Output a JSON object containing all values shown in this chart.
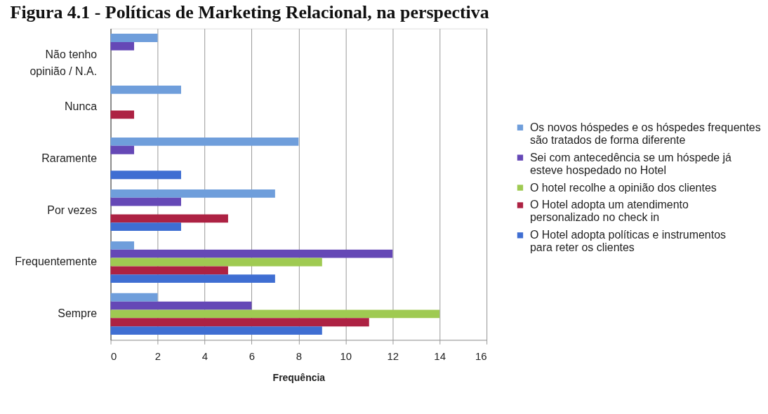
{
  "chart_data": {
    "type": "bar",
    "orientation": "horizontal",
    "title": "Figura 4.1 - Políticas de Marketing Relacional, na perspectiva",
    "xlabel": "Frequência",
    "categories": [
      "Não tenho opinião / N.A.",
      "Nunca",
      "Raramente",
      "Por vezes",
      "Frequentemente",
      "Sempre"
    ],
    "series": [
      {
        "name": "Os novos hóspedes e os hóspedes frequentes são tratados de forma diferente",
        "color": "#6f9edb",
        "values": [
          2,
          3,
          8,
          7,
          1,
          2
        ]
      },
      {
        "name": "Sei com antecedência se um hóspede já esteve hospedado no Hotel",
        "color": "#6548b6",
        "values": [
          1,
          0,
          1,
          3,
          12,
          6
        ]
      },
      {
        "name": "O hotel recolhe a opinião dos clientes",
        "color": "#9fca52",
        "values": [
          0,
          0,
          0,
          0,
          9,
          14
        ]
      },
      {
        "name": "O Hotel adopta um atendimento personalizado no check in",
        "color": "#ad2243",
        "values": [
          0,
          1,
          0,
          5,
          5,
          11
        ]
      },
      {
        "name": "O Hotel adopta políticas e instrumentos para reter os clientes",
        "color": "#3f6ed2",
        "values": [
          0,
          0,
          3,
          3,
          7,
          9
        ]
      }
    ],
    "xlim": [
      0,
      16
    ],
    "xticks": [
      0,
      2,
      4,
      6,
      8,
      10,
      12,
      14,
      16
    ],
    "grid": "x",
    "legend": "right"
  }
}
